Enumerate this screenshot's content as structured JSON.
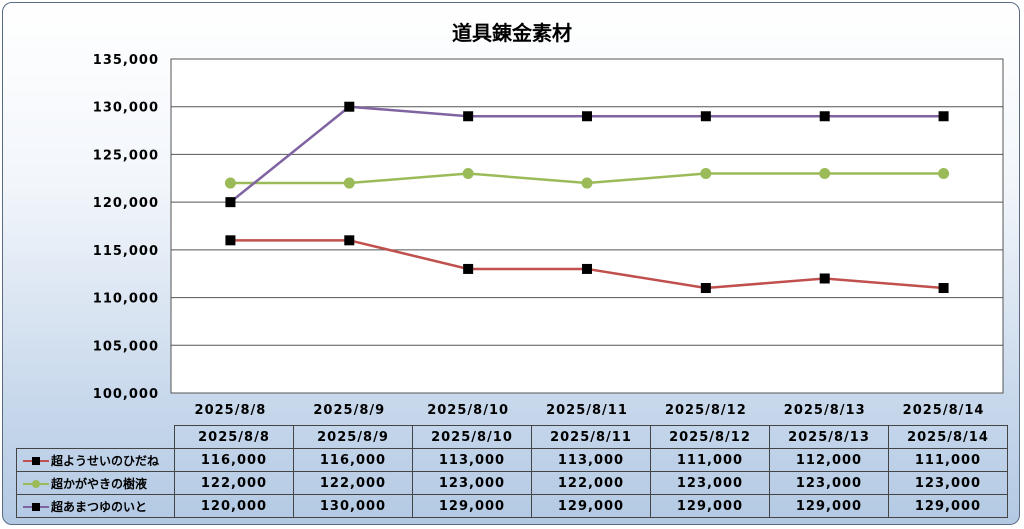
{
  "chart_data": {
    "type": "line",
    "title": "道具錬金素材",
    "categories": [
      "2025/8/8",
      "2025/8/9",
      "2025/8/10",
      "2025/8/11",
      "2025/8/12",
      "2025/8/13",
      "2025/8/14"
    ],
    "ylim": [
      100000,
      135000
    ],
    "yticks": [
      100000,
      105000,
      110000,
      115000,
      120000,
      125000,
      130000,
      135000
    ],
    "grid": true,
    "legend": "data-table",
    "series": [
      {
        "name": "超ようせいのひだね",
        "color": "#c0504d",
        "marker": "square",
        "values": [
          116000,
          116000,
          113000,
          113000,
          111000,
          112000,
          111000
        ]
      },
      {
        "name": "超かがやきの樹液",
        "color": "#9bbb59",
        "marker": "circle",
        "values": [
          122000,
          122000,
          123000,
          122000,
          123000,
          123000,
          123000
        ]
      },
      {
        "name": "超あまつゆのいと",
        "color": "#8064a2",
        "marker": "square",
        "values": [
          120000,
          130000,
          129000,
          129000,
          129000,
          129000,
          129000
        ]
      }
    ]
  }
}
